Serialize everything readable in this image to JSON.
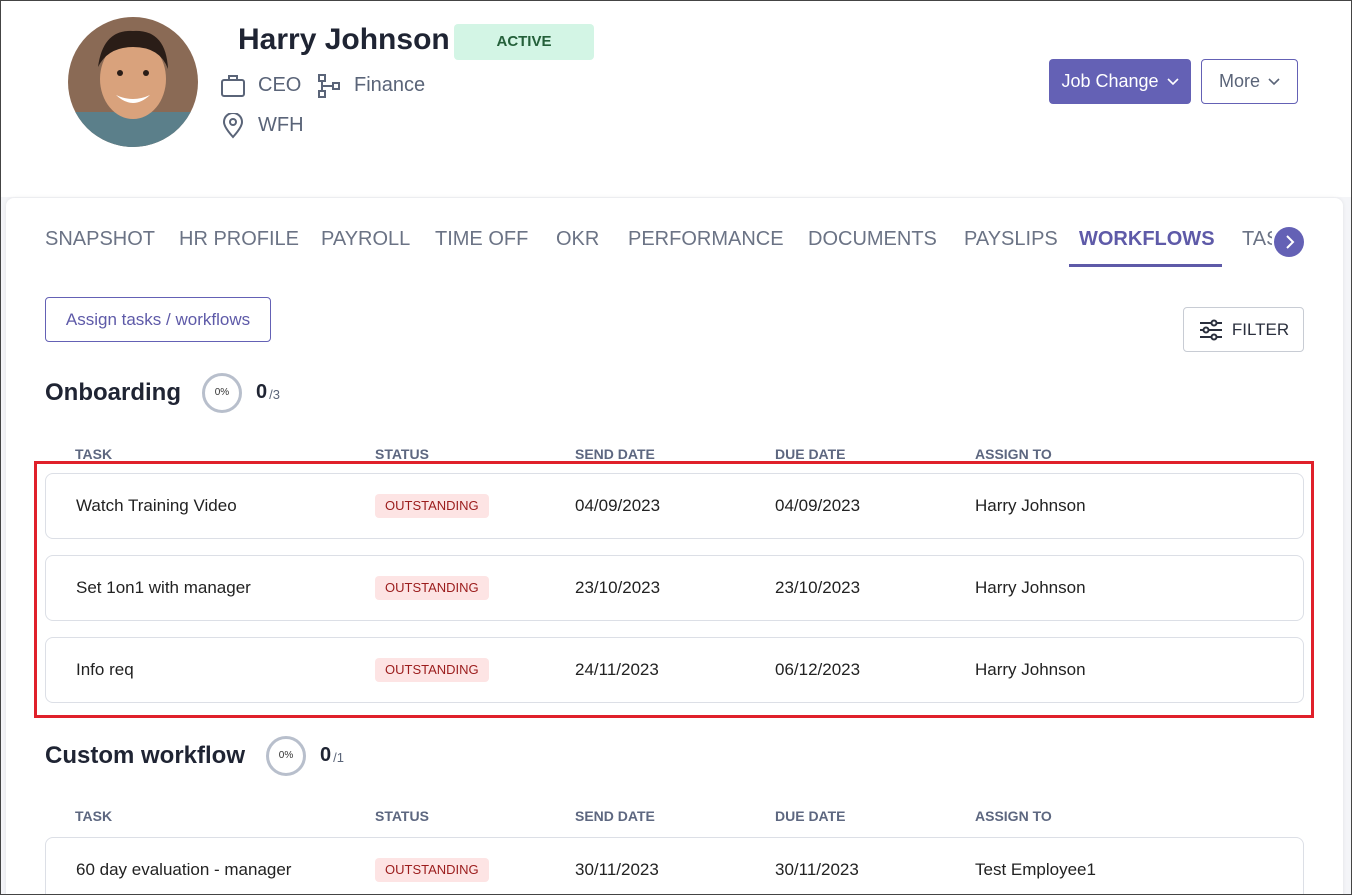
{
  "profile": {
    "name": "Harry Johnson",
    "status": "ACTIVE",
    "role": "CEO",
    "department": "Finance",
    "location": "WFH"
  },
  "actions": [
    "Job Change",
    "More"
  ],
  "tabs": [
    "SNAPSHOT",
    "HR PROFILE",
    "PAYROLL",
    "TIME OFF",
    "OKR",
    "PERFORMANCE",
    "DOCUMENTS",
    "PAYSLIPS",
    "WORKFLOWS",
    "TAS"
  ],
  "active_tab": 8,
  "assign_button": "Assign tasks / workflows",
  "filter_button": "FILTER",
  "workflows": [
    {
      "title": "Onboarding",
      "progress": "0%",
      "count": "0",
      "total": "/3",
      "columns": [
        "TASK",
        "STATUS",
        "SEND DATE",
        "DUE DATE",
        "ASSIGN TO"
      ],
      "rows": [
        [
          "Watch Training Video",
          "OUTSTANDING",
          "04/09/2023",
          "04/09/2023",
          "Harry Johnson"
        ],
        [
          "Set 1on1 with manager",
          "OUTSTANDING",
          "23/10/2023",
          "23/10/2023",
          "Harry Johnson"
        ],
        [
          "Info req",
          "OUTSTANDING",
          "24/11/2023",
          "06/12/2023",
          "Harry Johnson"
        ]
      ]
    },
    {
      "title": "Custom workflow",
      "progress": "0%",
      "count": "0",
      "total": "/1",
      "columns": [
        "TASK",
        "STATUS",
        "SEND DATE",
        "DUE DATE",
        "ASSIGN TO"
      ],
      "rows": [
        [
          "60 day evaluation - manager",
          "OUTSTANDING",
          "30/11/2023",
          "30/11/2023",
          "Test Employee1"
        ]
      ]
    }
  ]
}
